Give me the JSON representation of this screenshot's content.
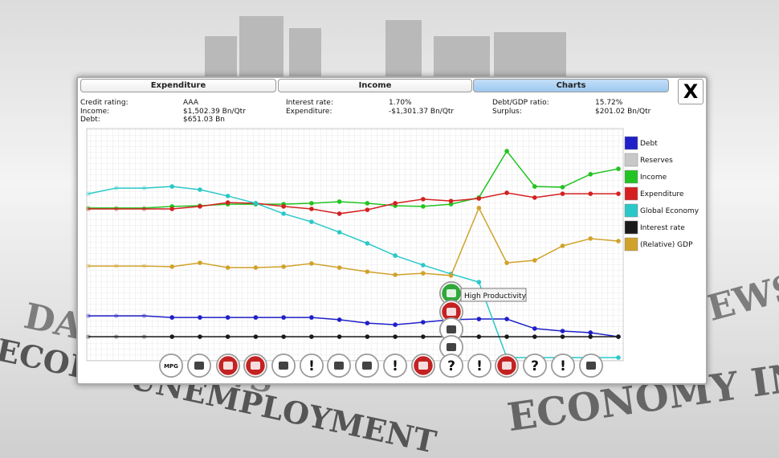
{
  "tabs": [
    "Expenditure",
    "Income",
    "Charts"
  ],
  "close": "X",
  "stats": [
    {
      "label": "Credit rating:",
      "value": "AAA"
    },
    {
      "label": "Income:",
      "value": "$1,502.39 Bn/Qtr"
    },
    {
      "label": "Debt:",
      "value": "$651.03 Bn"
    },
    {
      "label": "Interest rate:",
      "value": "1.70%"
    },
    {
      "label": "Expenditure:",
      "value": "-$1,301.37 Bn/Qtr"
    },
    {
      "label": "Debt/GDP ratio:",
      "value": "15.72%"
    },
    {
      "label": "Surplus:",
      "value": "$201.02 Bn/Qtr"
    }
  ],
  "headlines": [
    "DA",
    "NEWS",
    "ECORD UNEMPLOYMENT",
    "ECONOMY IN CR",
    "EWS"
  ],
  "event_icons": [
    "MPG",
    "!",
    "!",
    "?",
    "!",
    "?",
    "!"
  ],
  "tooltip": "High Productivity",
  "chart_data": {
    "type": "line",
    "categories": [
      null,
      null,
      null,
      null,
      null,
      null,
      null,
      null,
      null,
      null,
      null,
      null,
      null,
      null,
      null,
      null,
      null,
      null,
      null,
      null
    ],
    "ylim": [
      0,
      100
    ],
    "grid": true,
    "series": [
      {
        "name": "Debt",
        "color": "#1f1fc8",
        "values": [
          18.4,
          18.4,
          18.4,
          17.7,
          17.7,
          17.7,
          17.7,
          17.7,
          17.7,
          16.7,
          15.2,
          14.5,
          15.6,
          16.7,
          17,
          17,
          12.8,
          11.7,
          11,
          9.2
        ]
      },
      {
        "name": "Reserves",
        "color": "#c8c8c8",
        "values": [
          null,
          null,
          null,
          null,
          null,
          null,
          null,
          null,
          null,
          null,
          null,
          null,
          null,
          null,
          null,
          null,
          null,
          null,
          null,
          null
        ]
      },
      {
        "name": "Income",
        "color": "#22c322",
        "values": [
          66,
          66,
          66,
          66.7,
          67,
          67.7,
          67.7,
          67.7,
          68.1,
          68.8,
          68.1,
          67,
          66.7,
          67.7,
          70.6,
          91.1,
          75.5,
          75.2,
          80.9,
          83.3
        ]
      },
      {
        "name": "Expenditure",
        "color": "#d42020",
        "values": [
          65.6,
          65.6,
          65.6,
          65.6,
          66.7,
          68.4,
          68.1,
          66.7,
          65.6,
          63.5,
          65.2,
          68.1,
          69.9,
          69.1,
          70.2,
          72.7,
          70.6,
          72.3,
          72.3,
          72.3
        ]
      },
      {
        "name": "Global Economy",
        "color": "#2ac8c8",
        "values": [
          72.3,
          74.8,
          74.8,
          75.5,
          74.1,
          71.3,
          68.1,
          63.5,
          59.9,
          55.3,
          50.4,
          45,
          40.8,
          36.9,
          33.3,
          0,
          0,
          0,
          0,
          0
        ]
      },
      {
        "name": "Interest rate",
        "color": "#1a1a1a",
        "values": [
          9.2,
          9.2,
          9.2,
          9.2,
          9.2,
          9.2,
          9.2,
          9.2,
          9.2,
          9.2,
          9.2,
          9.2,
          9.2,
          9.2,
          9.2,
          9.2,
          9.2,
          9.2,
          9.2,
          9.2
        ]
      },
      {
        "name": "(Relative) GDP",
        "color": "#d1a22a",
        "values": [
          40.4,
          40.4,
          40.4,
          40.1,
          41.8,
          39.7,
          39.7,
          40.1,
          41.5,
          39.7,
          37.9,
          36.5,
          37.2,
          36.2,
          66,
          41.8,
          42.9,
          49.3,
          52.5,
          51.4
        ]
      }
    ]
  }
}
